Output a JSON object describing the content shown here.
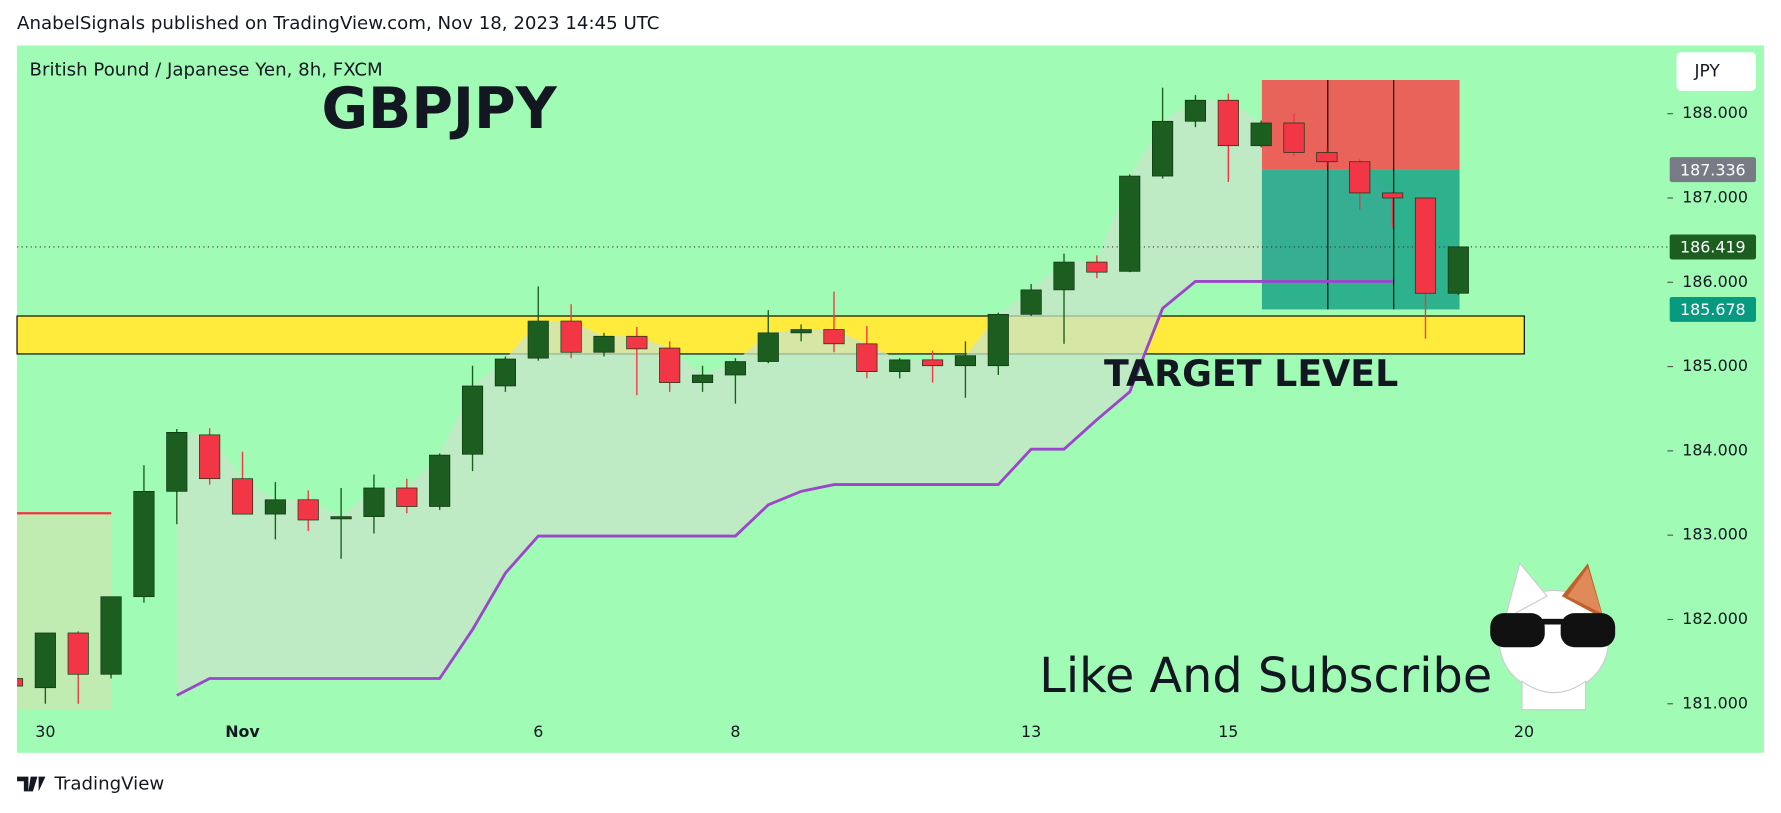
{
  "chart_data": {
    "type": "candlestick",
    "header": "AnabelSignals published on TradingView.com, Nov 18, 2023 14:45 UTC",
    "title": "GBPJPY",
    "subtitle": "British Pound / Japanese Yen, 8h, FXCM",
    "currency": "JPY",
    "brand": "TradingView",
    "annotations": [
      "TARGET LEVEL",
      "Like And Subscribe"
    ],
    "categories": [
      null,
      "30",
      null,
      null,
      null,
      null,
      null,
      "Nov",
      null,
      null,
      null,
      null,
      null,
      null,
      null,
      null,
      "6",
      null,
      null,
      null,
      null,
      null,
      "8",
      null,
      null,
      null,
      null,
      null,
      null,
      null,
      null,
      "13",
      null,
      null,
      null,
      null,
      null,
      "15",
      null,
      null,
      null,
      null,
      null,
      null,
      null,
      null,
      "20"
    ],
    "open": [
      181.3,
      181.19,
      181.84,
      181.35,
      182.27,
      183.52,
      184.19,
      183.67,
      183.25,
      183.42,
      183.2,
      183.22,
      183.56,
      183.34,
      183.96,
      184.77,
      185.1,
      185.54,
      185.17,
      185.36,
      185.22,
      184.81,
      184.9,
      185.06,
      185.4,
      185.44,
      185.27,
      184.94,
      185.08,
      185.01,
      185.01,
      185.62,
      185.91,
      186.24,
      186.13,
      187.26,
      187.91,
      188.16,
      187.62,
      187.89,
      187.54,
      187.43,
      187.06,
      187.0,
      185.87,
      null,
      null
    ],
    "high": [
      181.32,
      181.84,
      181.86,
      182.27,
      183.83,
      184.26,
      184.27,
      183.99,
      183.63,
      183.53,
      183.56,
      183.72,
      183.67,
      183.97,
      185.01,
      185.12,
      185.95,
      185.74,
      185.4,
      185.47,
      185.3,
      185.01,
      185.1,
      185.67,
      185.5,
      185.89,
      185.48,
      185.1,
      185.19,
      185.3,
      185.64,
      185.98,
      186.34,
      186.32,
      187.28,
      188.31,
      188.22,
      188.24,
      187.92,
      188.0,
      187.6,
      187.46,
      187.07,
      187.0,
      186.42,
      null,
      null
    ],
    "low": [
      181.2,
      181.0,
      181.0,
      181.3,
      182.2,
      183.13,
      183.6,
      183.25,
      182.95,
      183.05,
      182.72,
      183.02,
      183.26,
      183.3,
      183.76,
      184.7,
      185.07,
      185.1,
      185.12,
      184.66,
      184.7,
      184.7,
      184.56,
      185.04,
      185.3,
      185.17,
      184.86,
      184.86,
      184.81,
      184.63,
      184.9,
      185.6,
      185.27,
      186.05,
      186.12,
      187.23,
      187.84,
      187.19,
      187.6,
      187.5,
      187.38,
      186.86,
      186.65,
      185.33,
      185.85,
      null,
      null
    ],
    "close": [
      181.21,
      181.84,
      181.35,
      182.27,
      183.52,
      184.22,
      183.67,
      183.25,
      183.42,
      183.18,
      183.22,
      183.56,
      183.34,
      183.95,
      184.77,
      185.09,
      185.54,
      185.17,
      185.36,
      185.21,
      184.81,
      184.9,
      185.06,
      185.4,
      185.44,
      185.27,
      184.94,
      185.08,
      185.01,
      185.13,
      185.62,
      185.91,
      186.24,
      186.12,
      187.26,
      187.91,
      188.16,
      187.62,
      187.89,
      187.54,
      187.43,
      187.06,
      187.0,
      185.87,
      186.42,
      null,
      null
    ],
    "up_color": "#1b5e20",
    "down_color": "#f23645",
    "trend_line": {
      "color": "#9c46c9",
      "values": [
        null,
        null,
        null,
        null,
        null,
        181.1,
        181.3,
        181.3,
        181.3,
        181.3,
        181.3,
        181.3,
        181.3,
        181.3,
        181.88,
        182.55,
        182.99,
        182.99,
        182.99,
        182.99,
        182.99,
        182.99,
        182.99,
        183.36,
        183.52,
        183.6,
        183.6,
        183.6,
        183.6,
        183.6,
        183.6,
        184.02,
        184.02,
        184.37,
        184.7,
        185.69,
        186.01,
        186.01,
        186.01,
        186.01,
        186.01,
        186.01,
        186.01,
        null,
        null,
        null,
        null
      ]
    },
    "zone": {
      "top": 185.6,
      "bottom": 185.15,
      "color": "#ffeb3b"
    },
    "position": {
      "stop": 188.4,
      "entry": 187.336,
      "target": 185.678
    },
    "old_level": 183.26,
    "price_labels": [
      {
        "value": 187.336,
        "label": "187.336",
        "color": "#787b86"
      },
      {
        "value": 186.419,
        "label": "186.419",
        "color": "#1b5e20"
      },
      {
        "value": 185.678,
        "label": "185.678",
        "color": "#089981"
      }
    ],
    "ylim": [
      180.93,
      188.81
    ],
    "yticks": [
      {
        "value": 181,
        "label": "181.000"
      },
      {
        "value": 182,
        "label": "182.000"
      },
      {
        "value": 183,
        "label": "183.000"
      },
      {
        "value": 184,
        "label": "184.000"
      },
      {
        "value": 185,
        "label": "185.000"
      },
      {
        "value": 186,
        "label": "186.000"
      },
      {
        "value": 187,
        "label": "187.000"
      },
      {
        "value": 188,
        "label": "188.000"
      }
    ],
    "background": "#a0fcb4"
  }
}
